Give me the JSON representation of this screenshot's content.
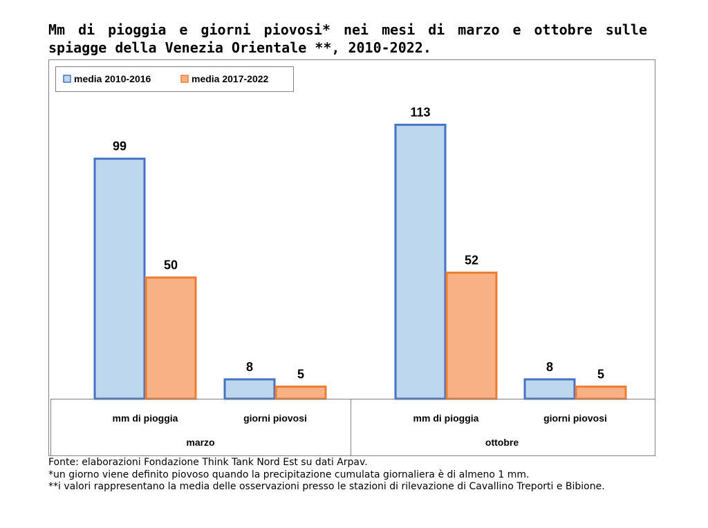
{
  "title": "Mm di pioggia e giorni piovosi* nei mesi di marzo e ottobre sulle spiagge della Venezia Orientale **, 2010-2022.",
  "colors": {
    "series1_fill": "#bdd7ee",
    "series1_stroke": "#4472c4",
    "series2_fill": "#f7b184",
    "series2_stroke": "#ed7d31"
  },
  "chart_data": {
    "type": "bar",
    "title": "",
    "xlabel": "",
    "ylabel": "",
    "legend_position": "top-left",
    "grid": false,
    "ylim": [
      0,
      120
    ],
    "groups": [
      {
        "label": "marzo",
        "categories": [
          "mm di pioggia",
          "giorni piovosi"
        ]
      },
      {
        "label": "ottobre",
        "categories": [
          "mm di pioggia",
          "giorni piovosi"
        ]
      }
    ],
    "series": [
      {
        "name": "media 2010-2016",
        "values": [
          99,
          8,
          113,
          8
        ]
      },
      {
        "name": "media 2017-2022",
        "values": [
          50,
          5,
          52,
          5
        ]
      }
    ],
    "data_labels": [
      [
        "99",
        "8",
        "113",
        "8"
      ],
      [
        "50",
        "5",
        "52",
        "5"
      ]
    ]
  },
  "notes": [
    "Fonte: elaborazioni Fondazione Think Tank Nord Est su dati Arpav.",
    "*un giorno viene definito piovoso quando la precipitazione cumulata giornaliera è di almeno 1 mm.",
    "**i valori rappresentano la media delle osservazioni presso le stazioni di rilevazione di Cavallino Treporti e Bibione."
  ]
}
